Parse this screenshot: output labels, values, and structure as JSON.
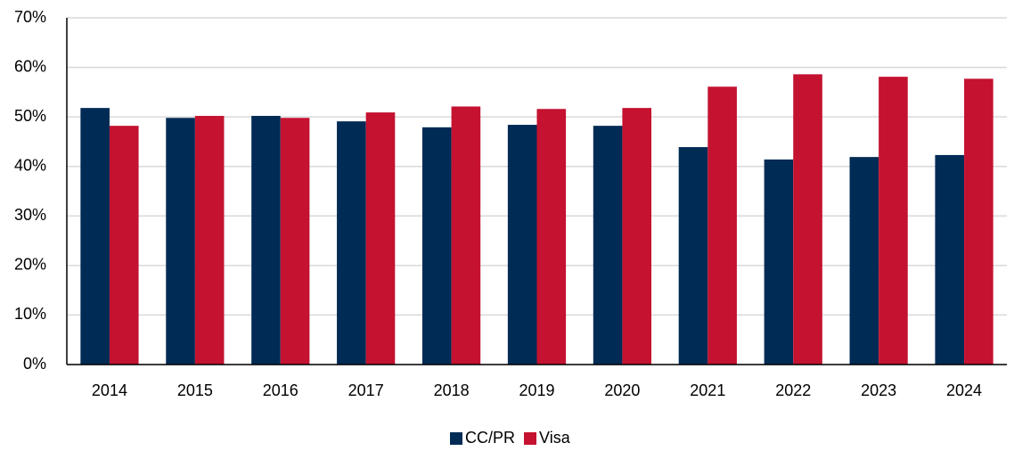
{
  "chart_data": {
    "type": "bar",
    "categories": [
      "2014",
      "2015",
      "2016",
      "2017",
      "2018",
      "2019",
      "2020",
      "2021",
      "2022",
      "2023",
      "2024"
    ],
    "series": [
      {
        "name": "CC/PR",
        "color": "#002b55",
        "values": [
          51.8,
          49.8,
          50.2,
          49.1,
          47.9,
          48.4,
          48.2,
          43.9,
          41.4,
          41.9,
          42.3
        ]
      },
      {
        "name": "Visa",
        "color": "#c41230",
        "values": [
          48.2,
          50.2,
          49.8,
          50.9,
          52.1,
          51.6,
          51.8,
          56.1,
          58.6,
          58.1,
          57.7
        ]
      }
    ],
    "ylim": [
      0,
      70
    ],
    "yticks": [
      {
        "value": 0,
        "label": "0%"
      },
      {
        "value": 10,
        "label": "10%"
      },
      {
        "value": 20,
        "label": "20%"
      },
      {
        "value": 30,
        "label": "30%"
      },
      {
        "value": 40,
        "label": "40%"
      },
      {
        "value": 50,
        "label": "50%"
      },
      {
        "value": 60,
        "label": "60%"
      },
      {
        "value": 70,
        "label": "70%"
      }
    ],
    "grid": true,
    "legend": "bottom"
  }
}
